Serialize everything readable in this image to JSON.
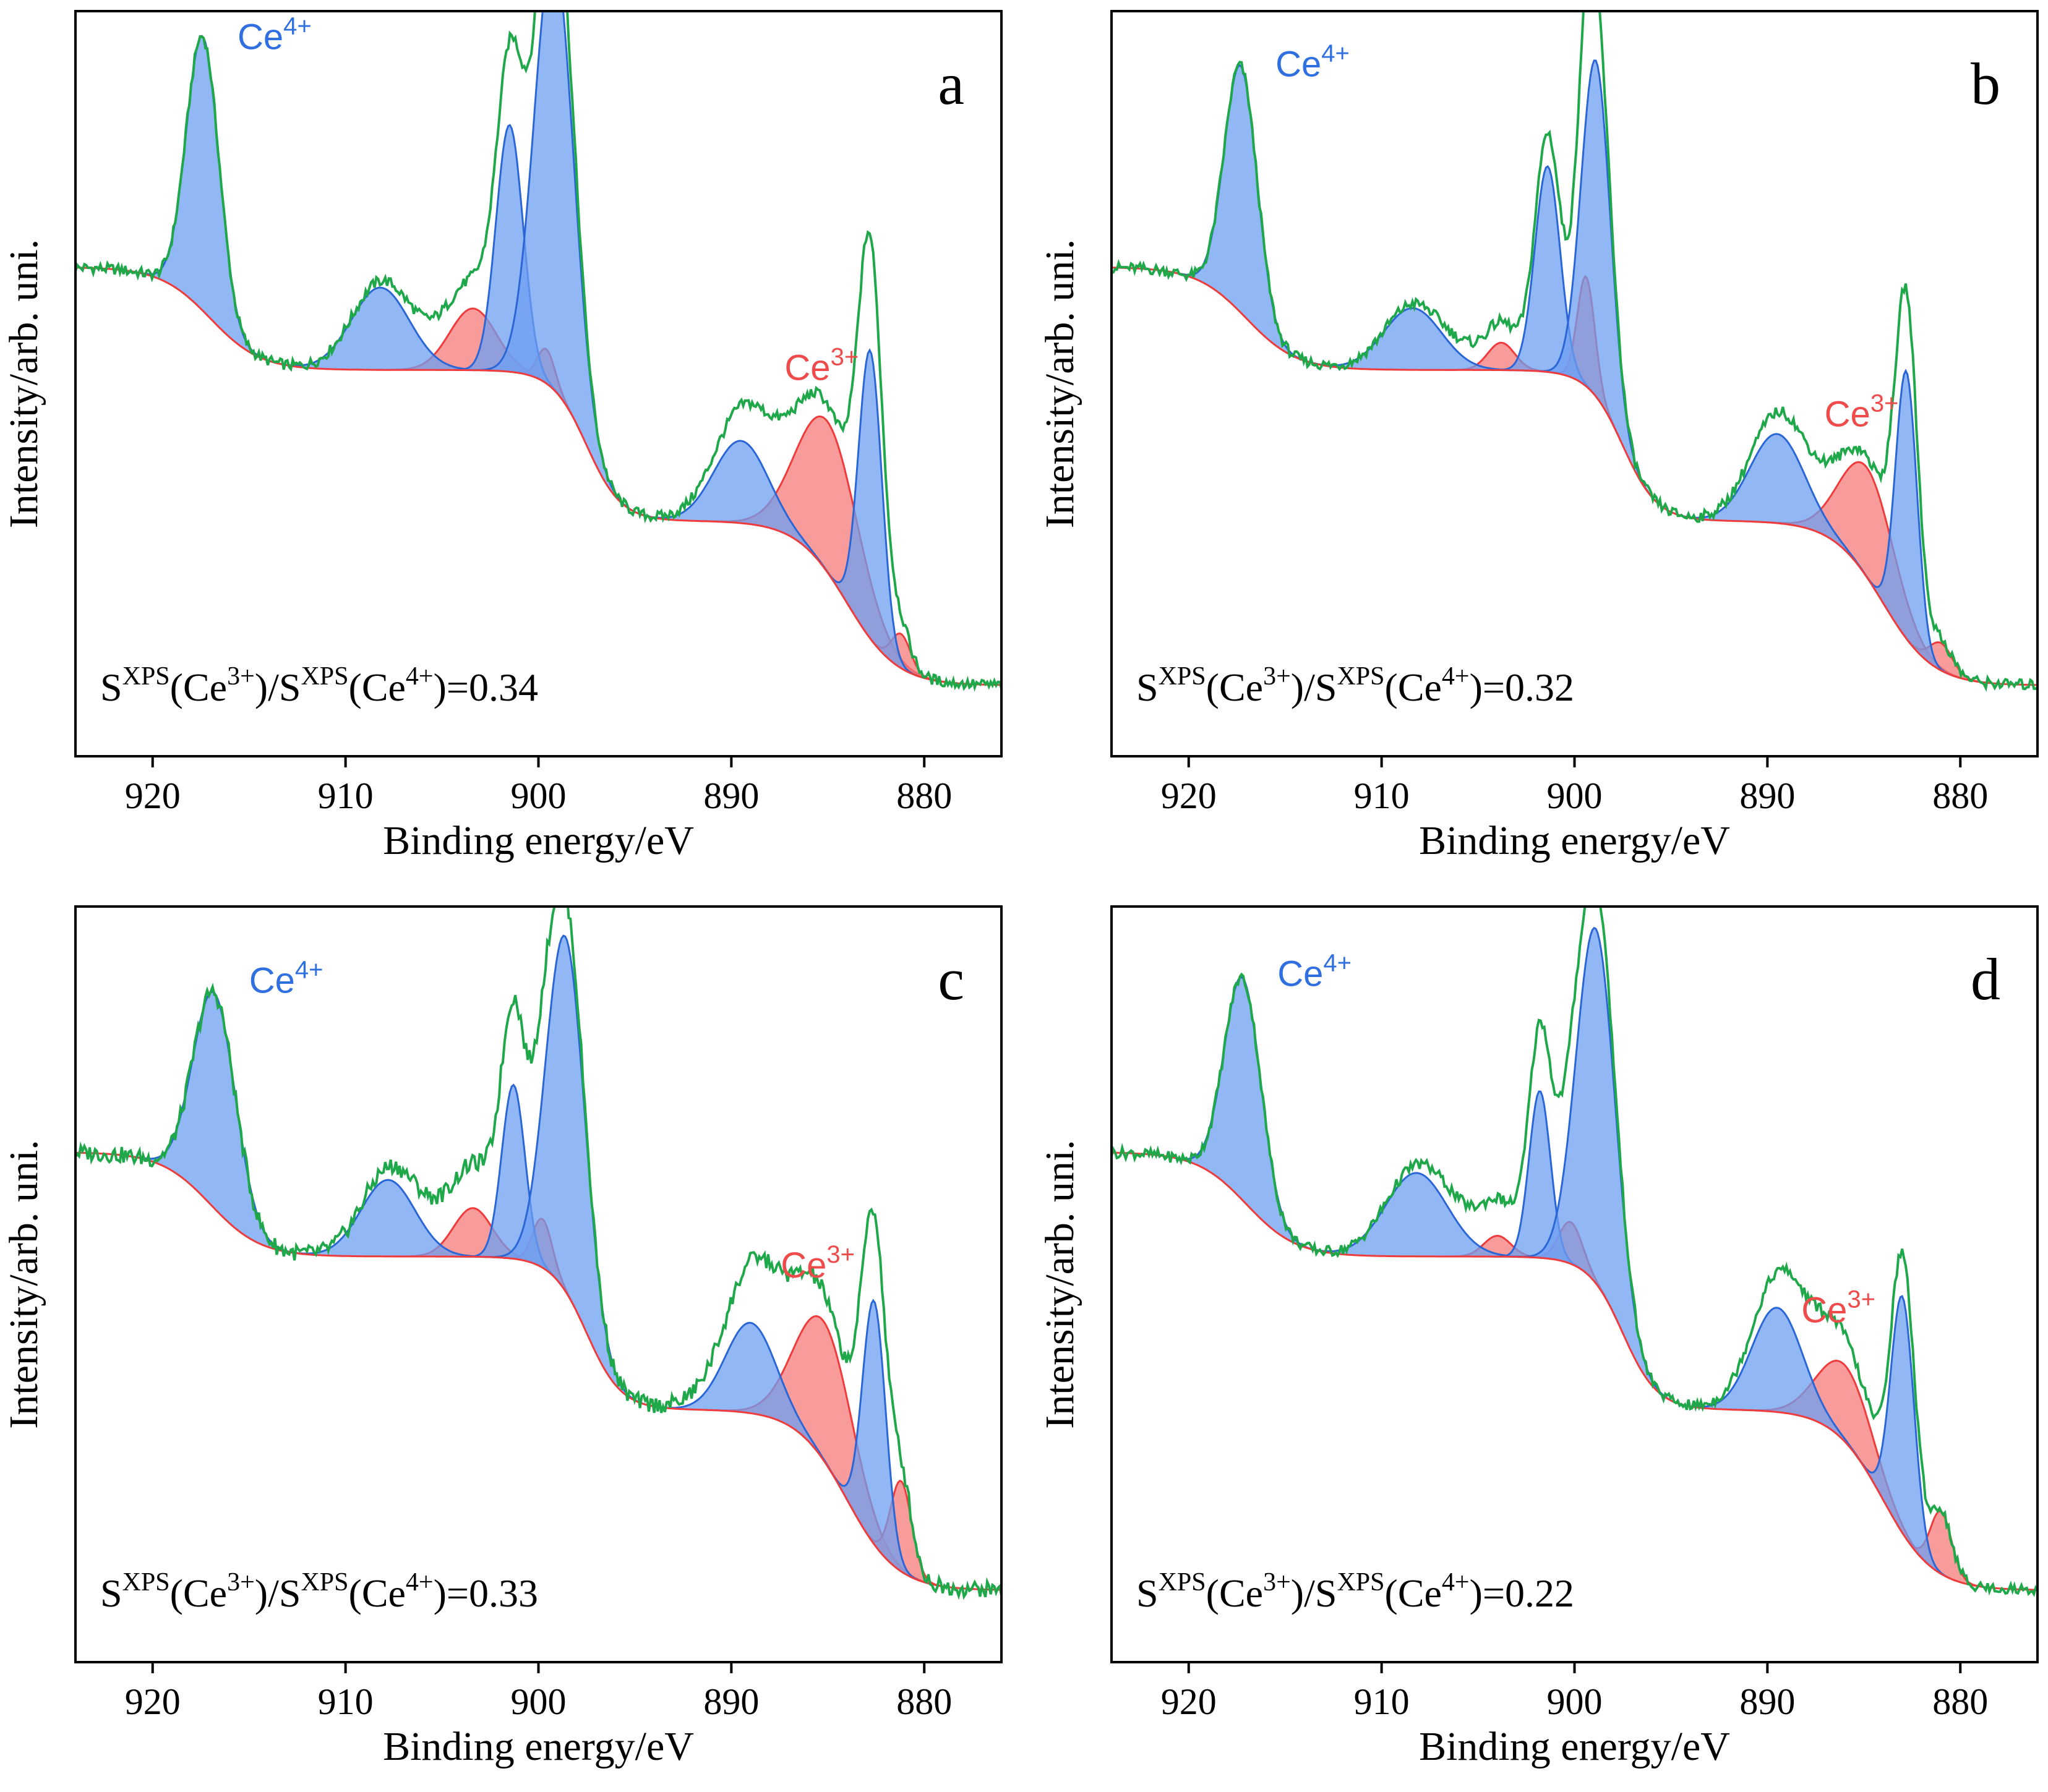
{
  "figure": {
    "xlabel": "Binding energy/eV",
    "ylabel": "Intensity/arb. uni.",
    "ce4_label": "Ce",
    "ce4_sup": "4+",
    "ce3_label": "Ce",
    "ce3_sup": "3+",
    "ratio_prefix": "S",
    "ratio_xps": "XPS",
    "ratio_ce3": "(Ce",
    "ratio_sup3": "3+",
    "ratio_mid": ")/S",
    "ratio_ce4": "(Ce",
    "ratio_sup4": "4+",
    "ratio_suffix": ")="
  },
  "colors": {
    "experimental": "#1fa84a",
    "ce4_line": "#2a66d6",
    "ce4_fill": "#6e9ff2",
    "ce3_line": "#ef3b3b",
    "ce3_fill": "#f47a7a",
    "ce4_text": "#2f6fe0",
    "ce3_text": "#ef4b4b"
  },
  "chart_data": [
    {
      "panel": "a",
      "type": "line",
      "xlabel": "Binding energy/eV",
      "ylabel": "Intensity/arb. uni.",
      "xlim": [
        924,
        876
      ],
      "ylim": [
        0,
        1
      ],
      "xticks": [
        920,
        910,
        900,
        890,
        880
      ],
      "ratio": "0.34",
      "background": {
        "high": 0.64,
        "step1": 0.15,
        "step2": 0.22,
        "step3": 0.24
      },
      "ce4_peaks": [
        {
          "center": 917.4,
          "height": 0.4,
          "width": 0.85
        },
        {
          "center": 908.2,
          "height": 0.12,
          "width": 1.5
        },
        {
          "center": 901.5,
          "height": 0.36,
          "width": 0.7
        },
        {
          "center": 899.2,
          "height": 0.64,
          "width": 1.0
        },
        {
          "center": 889.5,
          "height": 0.12,
          "width": 1.4
        },
        {
          "center": 882.8,
          "height": 0.42,
          "width": 0.6
        }
      ],
      "ce3_peaks": [
        {
          "center": 903.4,
          "height": 0.09,
          "width": 1.2
        },
        {
          "center": 899.6,
          "height": 0.05,
          "width": 0.45
        },
        {
          "center": 885.0,
          "height": 0.22,
          "width": 1.6
        },
        {
          "center": 881.2,
          "height": 0.05,
          "width": 0.5
        }
      ],
      "experimental_extra": [
        {
          "center": 899.0,
          "height": 0.08,
          "width": 0.8
        },
        {
          "center": 888.0,
          "height": 0.06,
          "width": 2.2
        },
        {
          "center": 901.3,
          "height": 0.03,
          "width": 0.6
        },
        {
          "center": 882.8,
          "height": 0.08,
          "width": 0.7
        },
        {
          "center": 904.0,
          "height": 0.04,
          "width": 2.5
        }
      ],
      "noise_amp": 0.008
    },
    {
      "panel": "b",
      "type": "line",
      "xlabel": "Binding energy/eV",
      "ylabel": "Intensity/arb. uni.",
      "xlim": [
        924,
        876
      ],
      "ylim": [
        0,
        1
      ],
      "xticks": [
        920,
        910,
        900,
        890,
        880
      ],
      "ratio": "0.32",
      "background": {
        "high": 0.64,
        "step1": 0.15,
        "step2": 0.22,
        "step3": 0.24
      },
      "ce4_peaks": [
        {
          "center": 917.3,
          "height": 0.36,
          "width": 0.85
        },
        {
          "center": 908.4,
          "height": 0.09,
          "width": 1.5
        },
        {
          "center": 901.4,
          "height": 0.3,
          "width": 0.65
        },
        {
          "center": 898.9,
          "height": 0.49,
          "width": 0.75
        },
        {
          "center": 889.5,
          "height": 0.13,
          "width": 1.4
        },
        {
          "center": 882.8,
          "height": 0.39,
          "width": 0.55
        }
      ],
      "ce3_peaks": [
        {
          "center": 903.8,
          "height": 0.04,
          "width": 0.7
        },
        {
          "center": 899.4,
          "height": 0.16,
          "width": 0.45
        },
        {
          "center": 884.8,
          "height": 0.16,
          "width": 1.4
        },
        {
          "center": 881.0,
          "height": 0.04,
          "width": 0.6
        }
      ],
      "experimental_extra": [
        {
          "center": 899.0,
          "height": 0.05,
          "width": 0.8
        },
        {
          "center": 888.0,
          "height": 0.04,
          "width": 2.2
        },
        {
          "center": 901.3,
          "height": 0.03,
          "width": 0.6
        },
        {
          "center": 882.8,
          "height": 0.06,
          "width": 0.7
        },
        {
          "center": 904.0,
          "height": 0.03,
          "width": 2.5
        }
      ],
      "noise_amp": 0.008
    },
    {
      "panel": "c",
      "type": "line",
      "xlabel": "Binding energy/eV",
      "ylabel": "Intensity/arb. uni.",
      "xlim": [
        924,
        876
      ],
      "ylim": [
        0,
        1
      ],
      "xticks": [
        920,
        910,
        900,
        890,
        880
      ],
      "ratio": "0.33",
      "background": {
        "high": 0.66,
        "step1": 0.15,
        "step2": 0.22,
        "step3": 0.26
      },
      "ce4_peaks": [
        {
          "center": 916.8,
          "height": 0.31,
          "width": 1.1
        },
        {
          "center": 907.8,
          "height": 0.11,
          "width": 1.4
        },
        {
          "center": 901.3,
          "height": 0.25,
          "width": 0.6
        },
        {
          "center": 898.6,
          "height": 0.51,
          "width": 1.0
        },
        {
          "center": 889.0,
          "height": 0.13,
          "width": 1.3
        },
        {
          "center": 882.6,
          "height": 0.35,
          "width": 0.6
        }
      ],
      "ce3_peaks": [
        {
          "center": 903.4,
          "height": 0.07,
          "width": 1.0
        },
        {
          "center": 899.8,
          "height": 0.07,
          "width": 0.5
        },
        {
          "center": 885.2,
          "height": 0.2,
          "width": 1.5
        },
        {
          "center": 881.2,
          "height": 0.13,
          "width": 0.55
        }
      ],
      "experimental_extra": [
        {
          "center": 899.0,
          "height": 0.06,
          "width": 0.8
        },
        {
          "center": 888.0,
          "height": 0.09,
          "width": 2.2
        },
        {
          "center": 901.3,
          "height": 0.07,
          "width": 0.9
        },
        {
          "center": 882.8,
          "height": 0.08,
          "width": 0.7
        },
        {
          "center": 904.0,
          "height": 0.06,
          "width": 2.5
        }
      ],
      "noise_amp": 0.012
    },
    {
      "panel": "d",
      "type": "line",
      "xlabel": "Binding energy/eV",
      "ylabel": "Intensity/arb. uni.",
      "xlim": [
        924,
        876
      ],
      "ylim": [
        0,
        1
      ],
      "xticks": [
        920,
        910,
        900,
        890,
        880
      ],
      "ratio": "0.22",
      "background": {
        "high": 0.66,
        "step1": 0.15,
        "step2": 0.22,
        "step3": 0.26
      },
      "ce4_peaks": [
        {
          "center": 917.2,
          "height": 0.32,
          "width": 0.95
        },
        {
          "center": 908.2,
          "height": 0.12,
          "width": 1.6
        },
        {
          "center": 901.8,
          "height": 0.24,
          "width": 0.55
        },
        {
          "center": 898.9,
          "height": 0.51,
          "width": 1.0
        },
        {
          "center": 889.5,
          "height": 0.15,
          "width": 1.3
        },
        {
          "center": 883.0,
          "height": 0.34,
          "width": 0.6
        }
      ],
      "ce3_peaks": [
        {
          "center": 904.0,
          "height": 0.03,
          "width": 0.7
        },
        {
          "center": 900.2,
          "height": 0.06,
          "width": 0.6
        },
        {
          "center": 886.0,
          "height": 0.11,
          "width": 1.4
        },
        {
          "center": 881.0,
          "height": 0.09,
          "width": 0.55
        }
      ],
      "experimental_extra": [
        {
          "center": 899.0,
          "height": 0.06,
          "width": 0.8
        },
        {
          "center": 888.0,
          "height": 0.06,
          "width": 2.2
        },
        {
          "center": 901.5,
          "height": 0.06,
          "width": 0.8
        },
        {
          "center": 882.8,
          "height": 0.05,
          "width": 0.7
        },
        {
          "center": 904.0,
          "height": 0.05,
          "width": 2.5
        }
      ],
      "noise_amp": 0.008
    }
  ]
}
